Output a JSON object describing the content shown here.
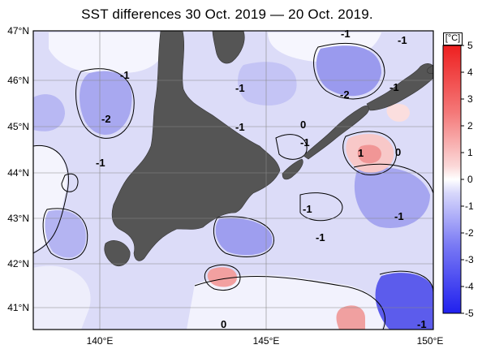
{
  "title": "SST differences 30 Oct. 2019 — 20 Oct. 2019.",
  "map": {
    "lat_labels": [
      "47°N",
      "46°N",
      "45°N",
      "44°N",
      "43°N",
      "42°N",
      "41°N"
    ],
    "lon_labels": [
      "140°E",
      "145°E",
      "150°E"
    ],
    "contour_labels": [
      "-1",
      "-1",
      "-1",
      "-2",
      "-1",
      "-1",
      "-1",
      "-2",
      "-1",
      "0",
      "-1",
      "1",
      "0",
      "-1",
      "-1",
      "-1",
      "0",
      "-1"
    ],
    "land_color": "#555555",
    "cold_color": "#4848f0",
    "warm_color": "#e83838"
  },
  "colorbar": {
    "unit": "[°C]",
    "ticks": [
      "5",
      "4",
      "3",
      "2",
      "1",
      "0",
      "-1",
      "-2",
      "-3",
      "-4",
      "-5"
    ],
    "range": [
      -5,
      5
    ]
  }
}
